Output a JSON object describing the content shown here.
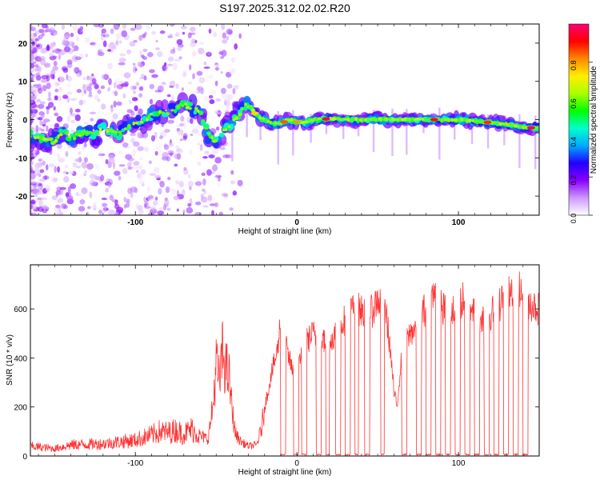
{
  "figure_title": "S197.2025.312.02.02.R20",
  "chart_data": [
    {
      "type": "heatmap",
      "title": "S197.2025.312.02.02.R20",
      "xlabel": "Height of straight line (km)",
      "ylabel": "Frequency (Hz)",
      "xlim": [
        -165,
        150
      ],
      "ylim": [
        -25,
        25
      ],
      "xticks": [
        -100,
        0,
        100
      ],
      "yticks": [
        -20,
        -10,
        0,
        10,
        20
      ],
      "colorbar": {
        "label": "Normalized spectral amplitude",
        "range": [
          0,
          1
        ],
        "ticks": [
          "0.0",
          "0.2",
          "0.4",
          "0.6",
          "0.8"
        ],
        "tick_values": [
          0,
          0.2,
          0.4,
          0.6,
          0.8
        ],
        "colors": [
          "#ffffff",
          "#cc99ff",
          "#8800ff",
          "#2200ff",
          "#00aaff",
          "#00ffcc",
          "#00ff00",
          "#aaff00",
          "#ffee00",
          "#ff8800",
          "#ff0000",
          "#ff0077"
        ]
      },
      "trace": {
        "x": [
          -165,
          -155,
          -150,
          -145,
          -140,
          -135,
          -130,
          -125,
          -120,
          -115,
          -110,
          -105,
          -100,
          -95,
          -90,
          -85,
          -80,
          -75,
          -70,
          -65,
          -60,
          -58,
          -55,
          -50,
          -45,
          -40,
          -35,
          -32,
          -28,
          -25,
          -20,
          -15,
          -10,
          -5,
          0,
          5,
          10,
          20,
          30,
          40,
          50,
          60,
          70,
          80,
          90,
          100,
          110,
          120,
          130,
          140,
          148
        ],
        "y": [
          -4,
          -5,
          -6,
          -3,
          -5,
          -4,
          -3,
          -4,
          -2,
          -3,
          -4,
          -2,
          -1,
          0,
          1,
          2,
          2,
          3,
          4,
          3,
          2,
          0,
          -4,
          -6,
          -3,
          -1,
          2,
          4,
          3,
          1,
          0,
          -1,
          -1,
          0,
          -0.5,
          -0.8,
          0,
          0.2,
          0,
          0,
          0,
          0,
          0,
          0,
          0,
          0,
          -0.4,
          -0.8,
          -1.2,
          -2,
          -2.2
        ]
      }
    },
    {
      "type": "line",
      "xlabel": "Height of straight line (km)",
      "ylabel": "SNR (10 * v/v)",
      "xlim": [
        -165,
        150
      ],
      "ylim": [
        0,
        780
      ],
      "xticks": [
        -100,
        0,
        100
      ],
      "yticks": [
        0,
        200,
        400,
        600
      ],
      "series": [
        {
          "name": "SNR",
          "color": "#ff3333",
          "x": [
            -165,
            -150,
            -140,
            -120,
            -100,
            -90,
            -85,
            -80,
            -75,
            -70,
            -65,
            -60,
            -55,
            -52,
            -50,
            -48,
            -46,
            -44,
            -42,
            -40,
            -38,
            -35,
            -30,
            -25,
            -22,
            -20,
            -18,
            -16,
            -14,
            -12,
            -10,
            -9,
            -8,
            -6,
            -4,
            -2,
            0,
            2,
            5,
            10,
            15,
            20,
            25,
            30,
            35,
            40,
            45,
            50,
            55,
            58,
            60,
            62,
            64,
            66,
            70,
            75,
            80,
            85,
            90,
            95,
            100,
            105,
            110,
            115,
            120,
            125,
            130,
            135,
            140,
            145,
            150
          ],
          "y": [
            40,
            30,
            45,
            50,
            65,
            85,
            100,
            95,
            105,
            90,
            110,
            80,
            70,
            200,
            380,
            300,
            420,
            360,
            320,
            180,
            90,
            60,
            40,
            45,
            110,
            200,
            260,
            330,
            380,
            430,
            560,
            680,
            560,
            420,
            380,
            330,
            340,
            420,
            460,
            500,
            470,
            460,
            520,
            560,
            610,
            590,
            570,
            640,
            600,
            420,
            260,
            200,
            360,
            440,
            500,
            540,
            610,
            660,
            600,
            580,
            620,
            650,
            600,
            560,
            580,
            610,
            680,
            700,
            650,
            620,
            600
          ]
        }
      ],
      "dropouts": [
        [
          -10,
          -7
        ],
        [
          -2,
          1
        ],
        [
          3,
          6
        ],
        [
          12,
          15
        ],
        [
          18,
          20
        ],
        [
          24,
          27
        ],
        [
          30,
          33
        ],
        [
          36,
          38
        ],
        [
          42,
          45
        ],
        [
          52,
          54
        ],
        [
          65,
          68
        ],
        [
          74,
          77
        ],
        [
          80,
          83
        ],
        [
          86,
          89
        ],
        [
          92,
          95
        ],
        [
          98,
          101
        ],
        [
          104,
          107
        ],
        [
          110,
          113
        ],
        [
          116,
          119
        ],
        [
          122,
          125
        ],
        [
          128,
          131
        ],
        [
          134,
          137
        ],
        [
          140,
          143
        ]
      ]
    }
  ]
}
